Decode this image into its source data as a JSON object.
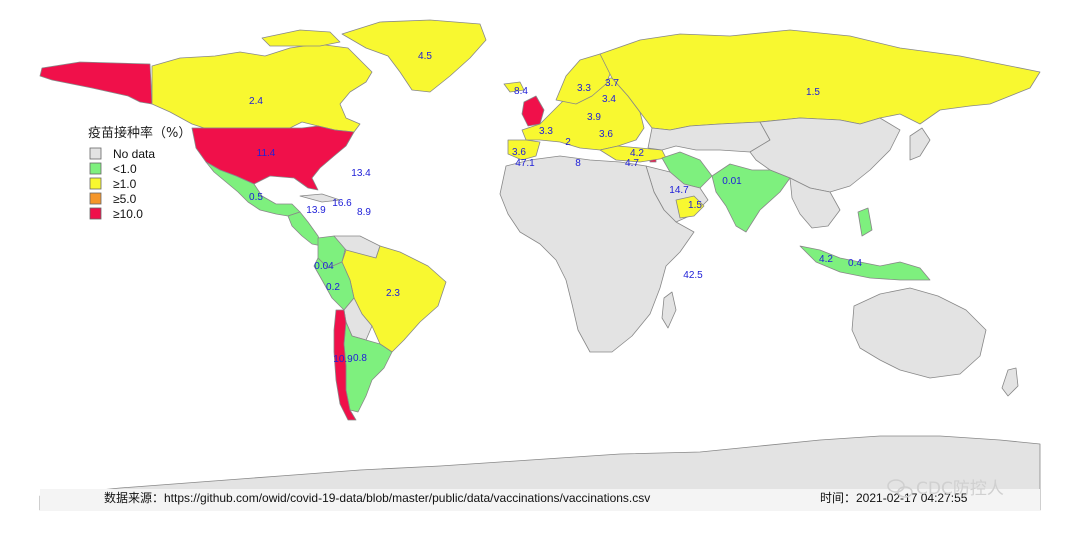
{
  "legend": {
    "title": "疫苗接种率（%）",
    "items": [
      {
        "label": "No data",
        "color": "#e3e3e3"
      },
      {
        "label": "<1.0",
        "color": "#7ef07e"
      },
      {
        "label": "≥1.0",
        "color": "#f8f830"
      },
      {
        "label": "≥5.0",
        "color": "#f5962a"
      },
      {
        "label": "≥10.0",
        "color": "#f0104a"
      }
    ]
  },
  "colors": {
    "no_data": "#e3e3e3",
    "lt1": "#7ef07e",
    "ge1": "#f8f830",
    "ge5": "#f5962a",
    "ge10": "#f0104a",
    "value_text": "#2020d8"
  },
  "values": {
    "greenland": "4.5",
    "canada": "2.4",
    "russia": "1.5",
    "usa": "11.4",
    "atlantic": "13.4",
    "mexico": "0.5",
    "caribbean_a": "13.9",
    "caribbean_b": "16.6",
    "caribbean_c": "8.9",
    "colombia": "0.04",
    "peru": "0.2",
    "brazil": "2.3",
    "chile": "10.9",
    "argentina": "0.8",
    "iceland": "8.4",
    "portugal": "3.6",
    "gibraltar": "47.1",
    "europe_a": "3.3",
    "europe_b": "2",
    "europe_c": "3.9",
    "europe_d": "3.7",
    "europe_e": "3.4",
    "europe_f": "3.6",
    "europe_g": "3.3",
    "cyprus": "4.2",
    "israel": "4.7",
    "malta": "8",
    "bahrain": "14.7",
    "uae": "1.5",
    "india": "0.01",
    "seychelles": "42.5",
    "indonesia": "0.4",
    "singapore": "4.2"
  },
  "footer": {
    "source": "数据来源：https://github.com/owid/covid-19-data/blob/master/public/data/vaccinations/vaccinations.csv",
    "time": "时间：2021-02-17 04:27:55"
  },
  "watermark": "CDC防控人"
}
